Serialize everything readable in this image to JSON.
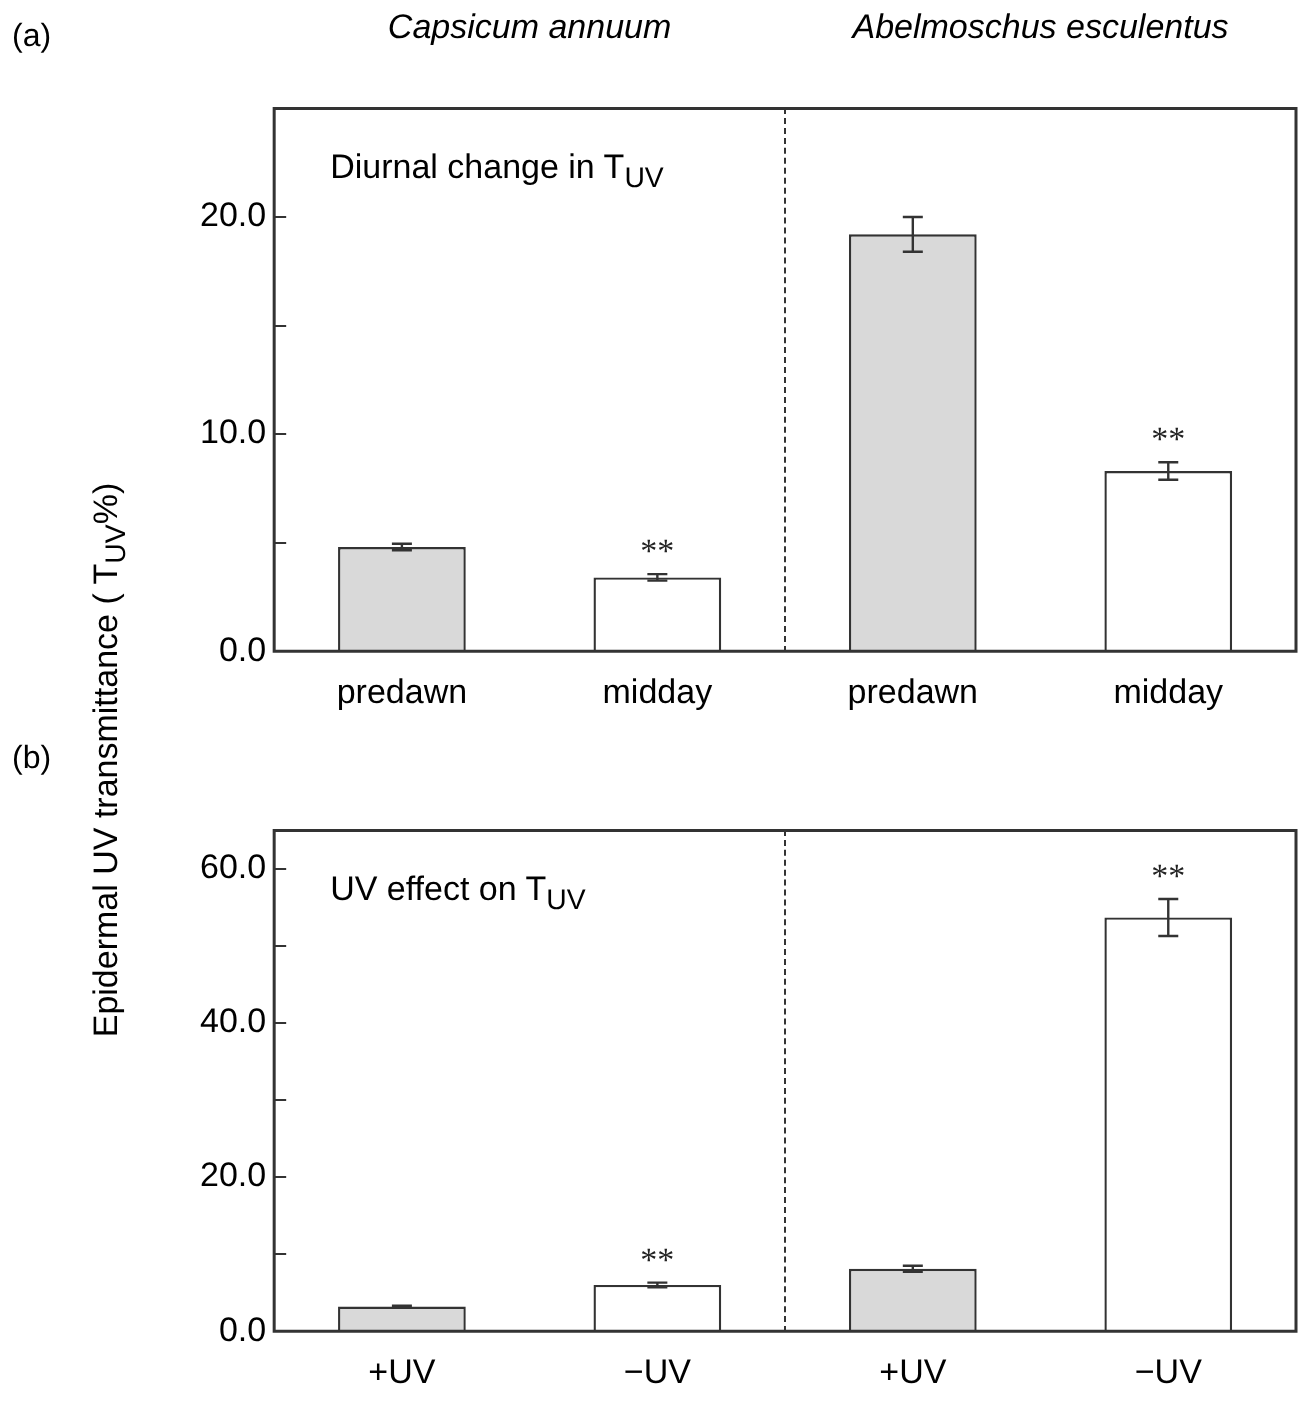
{
  "chart_data": [
    {
      "type": "bar",
      "title": "(a)",
      "ylabel": "Epidermal UV transmittance ( T$_{UV}$%)",
      "categories": [
        "predawn",
        "midday",
        "predawn",
        "midday"
      ],
      "values": [
        4.8,
        3.4,
        19.2,
        8.3
      ],
      "colors": [
        "#d9d9d9",
        "#ffffff",
        "#d9d9d9",
        "#ffffff"
      ],
      "errors": [
        0.15,
        0.15,
        0.8,
        0.4
      ],
      "value_labels": [
        null,
        "**",
        null,
        "**"
      ],
      "ylim": [
        0,
        25
      ],
      "yticks": [
        {
          "value": 0,
          "label": "0.0"
        },
        {
          "value": 5,
          "label": null
        },
        {
          "value": 10,
          "label": "10.0"
        },
        {
          "value": 15,
          "label": null
        },
        {
          "value": 20,
          "label": "20.0"
        }
      ],
      "annotations": [
        "Capsicum annuum",
        "Abelmoschus esculentus",
        "Diurnal change in T$_{UV}$"
      ]
    },
    {
      "type": "bar",
      "title": "(b)",
      "categories": [
        "+UV",
        "−UV",
        "+UV",
        "−UV"
      ],
      "values": [
        3.2,
        6.0,
        8.1,
        53.7
      ],
      "colors": [
        "#d9d9d9",
        "#ffffff",
        "#d9d9d9",
        "#ffffff"
      ],
      "errors": [
        0.1,
        0.3,
        0.4,
        2.4
      ],
      "value_labels": [
        null,
        "**",
        null,
        "**"
      ],
      "ylim": [
        0,
        65
      ],
      "yticks": [
        {
          "value": 0,
          "label": "0.0"
        },
        {
          "value": 10,
          "label": null
        },
        {
          "value": 20,
          "label": "20.0"
        },
        {
          "value": 30,
          "label": null
        },
        {
          "value": 40,
          "label": "40.0"
        },
        {
          "value": 50,
          "label": null
        },
        {
          "value": 60,
          "label": "60.0"
        }
      ],
      "annotations": [
        "UV effect on T$_{UV}$"
      ]
    }
  ]
}
